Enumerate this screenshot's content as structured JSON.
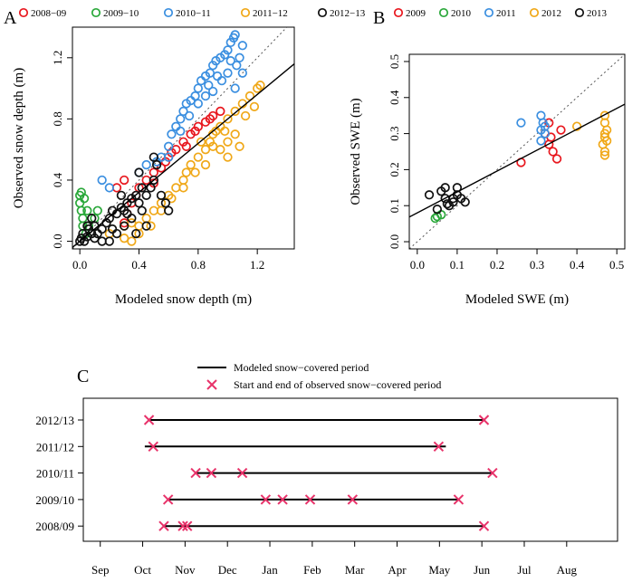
{
  "chart_data": [
    {
      "panel": "A",
      "type": "scatter",
      "xlabel": "Modeled snow depth (m)",
      "ylabel": "Observed snow depth (m)",
      "xlim": [
        -0.05,
        1.45
      ],
      "ylim": [
        -0.05,
        1.4
      ],
      "xticks": [
        "0.0",
        "0.4",
        "0.8",
        "1.2"
      ],
      "yticks": [
        "0.0",
        "0.4",
        "0.8",
        "1.2"
      ],
      "xtick_values": [
        0.0,
        0.4,
        0.8,
        1.2
      ],
      "ytick_values": [
        0.0,
        0.4,
        0.8,
        1.2
      ],
      "one_to_one_line": true,
      "fit_line": {
        "intercept": 0.0,
        "slope": 0.8
      },
      "legend_position": "top",
      "series": [
        {
          "name": "2008−09",
          "color": "#e8171e",
          "points": [
            [
              0.3,
              0.12
            ],
            [
              0.32,
              0.18
            ],
            [
              0.35,
              0.25
            ],
            [
              0.38,
              0.3
            ],
            [
              0.4,
              0.35
            ],
            [
              0.45,
              0.4
            ],
            [
              0.5,
              0.45
            ],
            [
              0.55,
              0.48
            ],
            [
              0.6,
              0.55
            ],
            [
              0.65,
              0.6
            ],
            [
              0.7,
              0.65
            ],
            [
              0.75,
              0.7
            ],
            [
              0.8,
              0.75
            ],
            [
              0.85,
              0.78
            ],
            [
              0.9,
              0.82
            ],
            [
              0.95,
              0.85
            ],
            [
              0.62,
              0.58
            ],
            [
              0.72,
              0.62
            ],
            [
              0.78,
              0.72
            ],
            [
              0.88,
              0.8
            ],
            [
              0.3,
              0.4
            ],
            [
              0.25,
              0.35
            ],
            [
              0.5,
              0.38
            ],
            [
              0.58,
              0.52
            ]
          ]
        },
        {
          "name": "2009−10",
          "color": "#2aa83a",
          "points": [
            [
              0.0,
              0.3
            ],
            [
              0.0,
              0.25
            ],
            [
              0.01,
              0.2
            ],
            [
              0.02,
              0.15
            ],
            [
              0.03,
              0.28
            ],
            [
              0.05,
              0.2
            ],
            [
              0.02,
              0.1
            ],
            [
              0.12,
              0.2
            ],
            [
              0.1,
              0.15
            ],
            [
              0.01,
              0.32
            ],
            [
              0.04,
              0.05
            ],
            [
              0.06,
              0.1
            ]
          ]
        },
        {
          "name": "2010−11",
          "color": "#3b8fe0",
          "points": [
            [
              0.55,
              0.55
            ],
            [
              0.6,
              0.62
            ],
            [
              0.62,
              0.7
            ],
            [
              0.65,
              0.75
            ],
            [
              0.68,
              0.8
            ],
            [
              0.7,
              0.85
            ],
            [
              0.72,
              0.9
            ],
            [
              0.75,
              0.92
            ],
            [
              0.78,
              0.95
            ],
            [
              0.8,
              1.0
            ],
            [
              0.82,
              1.05
            ],
            [
              0.85,
              1.08
            ],
            [
              0.88,
              1.1
            ],
            [
              0.9,
              1.15
            ],
            [
              0.92,
              1.18
            ],
            [
              0.95,
              1.2
            ],
            [
              0.98,
              1.22
            ],
            [
              1.0,
              1.25
            ],
            [
              1.02,
              1.3
            ],
            [
              1.04,
              1.33
            ],
            [
              1.05,
              1.35
            ],
            [
              1.06,
              1.15
            ],
            [
              1.08,
              1.2
            ],
            [
              1.1,
              1.1
            ],
            [
              1.05,
              1.0
            ],
            [
              1.0,
              1.1
            ],
            [
              0.96,
              1.05
            ],
            [
              0.9,
              0.98
            ],
            [
              0.85,
              0.95
            ],
            [
              0.8,
              0.9
            ],
            [
              0.74,
              0.82
            ],
            [
              0.68,
              0.72
            ],
            [
              0.6,
              0.55
            ],
            [
              0.52,
              0.52
            ],
            [
              0.45,
              0.5
            ],
            [
              0.4,
              0.45
            ],
            [
              0.15,
              0.4
            ],
            [
              0.2,
              0.35
            ],
            [
              1.1,
              1.28
            ],
            [
              1.02,
              1.18
            ],
            [
              0.93,
              1.08
            ],
            [
              0.87,
              1.02
            ]
          ]
        },
        {
          "name": "2011−12",
          "color": "#f0a818",
          "points": [
            [
              0.2,
              0.05
            ],
            [
              0.3,
              0.1
            ],
            [
              0.35,
              0.12
            ],
            [
              0.4,
              0.1
            ],
            [
              0.45,
              0.15
            ],
            [
              0.5,
              0.2
            ],
            [
              0.55,
              0.25
            ],
            [
              0.6,
              0.3
            ],
            [
              0.65,
              0.35
            ],
            [
              0.7,
              0.4
            ],
            [
              0.72,
              0.45
            ],
            [
              0.75,
              0.5
            ],
            [
              0.8,
              0.55
            ],
            [
              0.85,
              0.6
            ],
            [
              0.88,
              0.65
            ],
            [
              0.9,
              0.7
            ],
            [
              0.92,
              0.72
            ],
            [
              0.95,
              0.75
            ],
            [
              1.0,
              0.8
            ],
            [
              1.05,
              0.85
            ],
            [
              1.1,
              0.9
            ],
            [
              1.15,
              0.95
            ],
            [
              1.2,
              1.0
            ],
            [
              1.22,
              1.02
            ],
            [
              1.18,
              0.88
            ],
            [
              1.12,
              0.82
            ],
            [
              1.05,
              0.7
            ],
            [
              1.0,
              0.65
            ],
            [
              0.95,
              0.6
            ],
            [
              0.9,
              0.62
            ],
            [
              0.85,
              0.5
            ],
            [
              0.78,
              0.45
            ],
            [
              0.7,
              0.35
            ],
            [
              0.62,
              0.28
            ],
            [
              0.55,
              0.2
            ],
            [
              0.48,
              0.1
            ],
            [
              0.4,
              0.05
            ],
            [
              0.35,
              0.0
            ],
            [
              0.3,
              0.02
            ],
            [
              1.0,
              0.55
            ],
            [
              1.08,
              0.62
            ],
            [
              0.98,
              0.72
            ],
            [
              0.82,
              0.65
            ]
          ]
        },
        {
          "name": "2012−13",
          "color": "#111111",
          "points": [
            [
              0.0,
              0.0
            ],
            [
              0.01,
              0.02
            ],
            [
              0.02,
              0.05
            ],
            [
              0.03,
              0.0
            ],
            [
              0.05,
              0.03
            ],
            [
              0.06,
              0.08
            ],
            [
              0.08,
              0.05
            ],
            [
              0.1,
              0.1
            ],
            [
              0.12,
              0.05
            ],
            [
              0.15,
              0.08
            ],
            [
              0.18,
              0.12
            ],
            [
              0.2,
              0.15
            ],
            [
              0.22,
              0.2
            ],
            [
              0.25,
              0.18
            ],
            [
              0.28,
              0.22
            ],
            [
              0.3,
              0.2
            ],
            [
              0.32,
              0.25
            ],
            [
              0.35,
              0.28
            ],
            [
              0.38,
              0.3
            ],
            [
              0.4,
              0.25
            ],
            [
              0.42,
              0.2
            ],
            [
              0.45,
              0.3
            ],
            [
              0.48,
              0.35
            ],
            [
              0.5,
              0.4
            ],
            [
              0.52,
              0.5
            ],
            [
              0.55,
              0.3
            ],
            [
              0.58,
              0.25
            ],
            [
              0.6,
              0.2
            ],
            [
              0.35,
              0.15
            ],
            [
              0.3,
              0.1
            ],
            [
              0.25,
              0.05
            ],
            [
              0.2,
              0.0
            ],
            [
              0.4,
              0.45
            ],
            [
              0.45,
              0.1
            ],
            [
              0.38,
              0.05
            ],
            [
              0.15,
              0.0
            ],
            [
              0.1,
              0.02
            ],
            [
              0.08,
              0.15
            ],
            [
              0.05,
              0.1
            ],
            [
              0.32,
              0.18
            ],
            [
              0.28,
              0.3
            ],
            [
              0.42,
              0.35
            ],
            [
              0.5,
              0.55
            ],
            [
              0.22,
              0.08
            ]
          ]
        }
      ]
    },
    {
      "panel": "B",
      "type": "scatter",
      "xlabel": "Modeled SWE (m)",
      "ylabel": "Observed SWE (m)",
      "xlim": [
        -0.02,
        0.52
      ],
      "ylim": [
        -0.02,
        0.52
      ],
      "xticks": [
        "0.0",
        "0.1",
        "0.2",
        "0.3",
        "0.4",
        "0.5"
      ],
      "yticks": [
        "0.0",
        "0.1",
        "0.2",
        "0.3",
        "0.4",
        "0.5"
      ],
      "xtick_values": [
        0.0,
        0.1,
        0.2,
        0.3,
        0.4,
        0.5
      ],
      "ytick_values": [
        0.0,
        0.1,
        0.2,
        0.3,
        0.4,
        0.5
      ],
      "one_to_one_line": true,
      "fit_line": {
        "intercept": 0.08,
        "slope": 0.58
      },
      "legend_position": "top",
      "series": [
        {
          "name": "2009",
          "color": "#e8171e",
          "points": [
            [
              0.26,
              0.22
            ],
            [
              0.33,
              0.33
            ],
            [
              0.335,
              0.29
            ],
            [
              0.34,
              0.25
            ],
            [
              0.35,
              0.23
            ],
            [
              0.36,
              0.31
            ],
            [
              0.32,
              0.3
            ],
            [
              0.33,
              0.27
            ]
          ]
        },
        {
          "name": "2010",
          "color": "#2aa83a",
          "points": [
            [
              0.045,
              0.065
            ],
            [
              0.05,
              0.07
            ],
            [
              0.06,
              0.075
            ]
          ]
        },
        {
          "name": "2011",
          "color": "#3b8fe0",
          "points": [
            [
              0.26,
              0.33
            ],
            [
              0.31,
              0.35
            ],
            [
              0.315,
              0.33
            ],
            [
              0.31,
              0.31
            ],
            [
              0.32,
              0.3
            ],
            [
              0.31,
              0.28
            ],
            [
              0.32,
              0.32
            ]
          ]
        },
        {
          "name": "2012",
          "color": "#f0a818",
          "points": [
            [
              0.4,
              0.32
            ],
            [
              0.47,
              0.35
            ],
            [
              0.47,
              0.33
            ],
            [
              0.475,
              0.31
            ],
            [
              0.47,
              0.3
            ],
            [
              0.47,
              0.29
            ],
            [
              0.465,
              0.27
            ],
            [
              0.47,
              0.25
            ],
            [
              0.47,
              0.24
            ],
            [
              0.475,
              0.28
            ]
          ]
        },
        {
          "name": "2013",
          "color": "#111111",
          "points": [
            [
              0.03,
              0.13
            ],
            [
              0.05,
              0.09
            ],
            [
              0.06,
              0.14
            ],
            [
              0.07,
              0.12
            ],
            [
              0.08,
              0.1
            ],
            [
              0.09,
              0.11
            ],
            [
              0.1,
              0.13
            ],
            [
              0.1,
              0.15
            ],
            [
              0.11,
              0.12
            ],
            [
              0.12,
              0.11
            ],
            [
              0.07,
              0.15
            ],
            [
              0.09,
              0.12
            ],
            [
              0.075,
              0.105
            ]
          ]
        }
      ]
    },
    {
      "panel": "C",
      "type": "timeline",
      "month_labels": [
        "Sep",
        "Oct",
        "Nov",
        "Dec",
        "Jan",
        "Feb",
        "Mar",
        "Apr",
        "May",
        "Jun",
        "Jul",
        "Aug"
      ],
      "month_values": [
        0,
        1,
        2,
        3,
        4,
        5,
        6,
        7,
        8,
        9,
        10,
        11
      ],
      "xlim": [
        -0.4,
        12.2
      ],
      "legend": {
        "line_label": "Modeled snow−covered period",
        "marker_label": "Start and end of observed snow−covered period"
      },
      "marker_color": "#e8336a",
      "rows": [
        {
          "label": "2012/13",
          "model_start": 1.15,
          "model_end": 9.05,
          "observed_marks": [
            1.15,
            9.05
          ]
        },
        {
          "label": "2011/12",
          "model_start": 1.05,
          "model_end": 8.15,
          "observed_marks": [
            1.25,
            7.98
          ]
        },
        {
          "label": "2010/11",
          "model_start": 2.25,
          "model_end": 9.25,
          "observed_marks": [
            2.25,
            2.62,
            3.35,
            9.25
          ]
        },
        {
          "label": "2009/10",
          "model_start": 1.6,
          "model_end": 8.45,
          "observed_marks": [
            1.6,
            3.9,
            4.3,
            4.95,
            5.95,
            8.45
          ]
        },
        {
          "label": "2008/09",
          "model_start": 1.5,
          "model_end": 9.05,
          "observed_marks": [
            1.5,
            1.95,
            2.05,
            9.05
          ]
        }
      ]
    }
  ]
}
